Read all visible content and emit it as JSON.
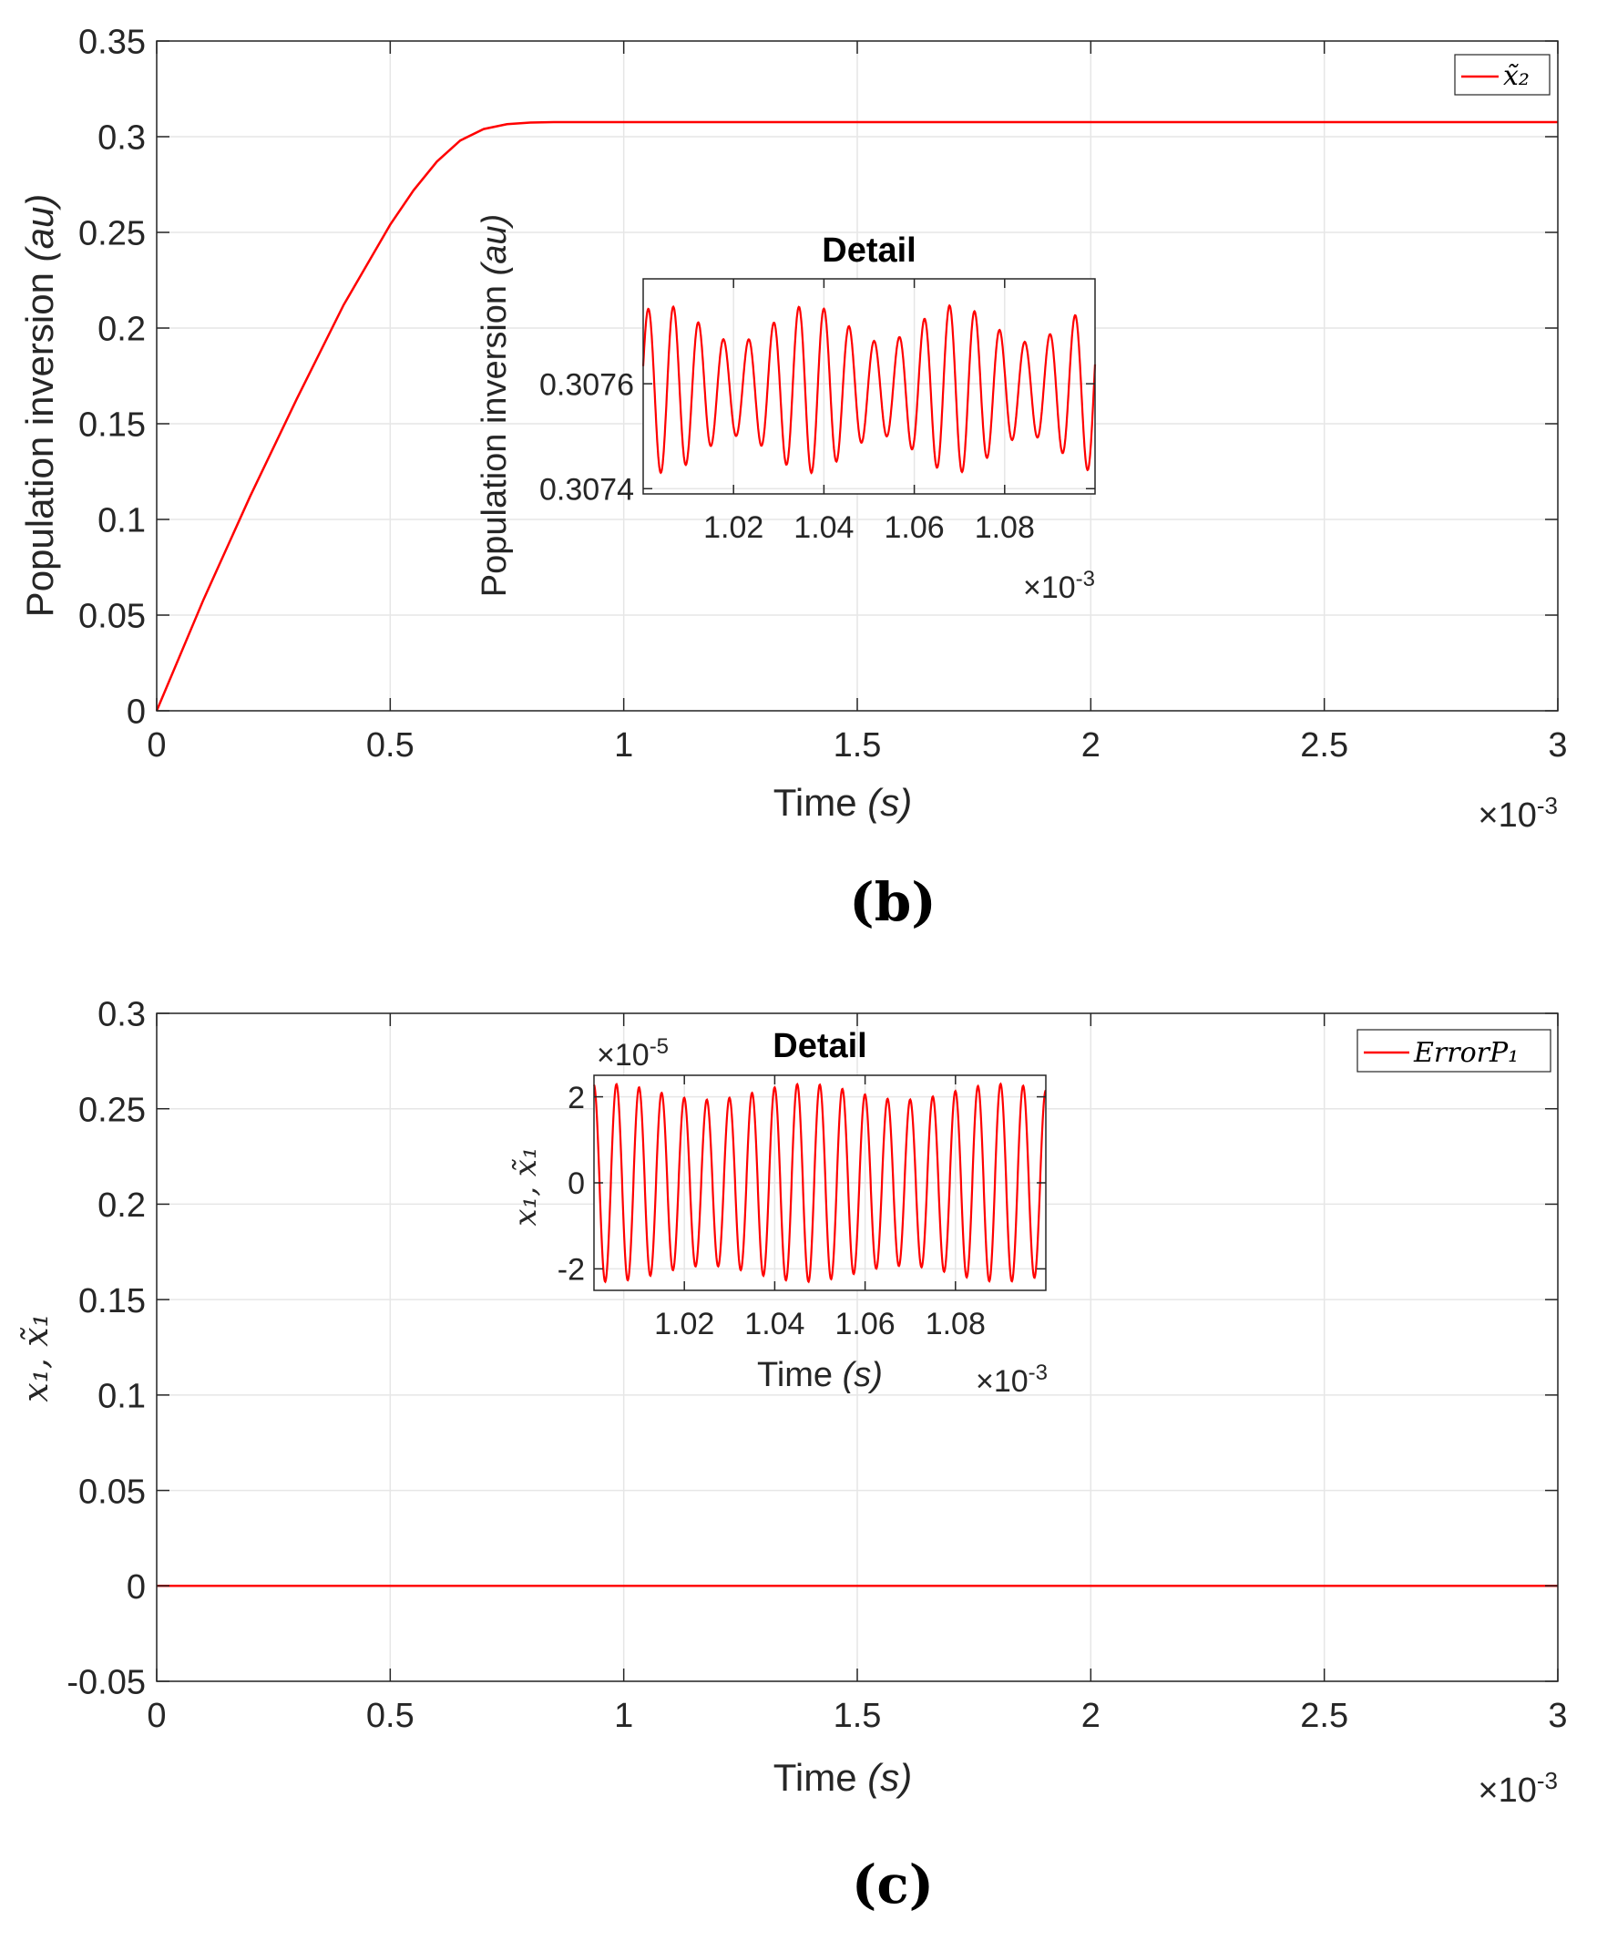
{
  "chart_data": [
    {
      "id": "b",
      "type": "line",
      "panel_label": "(b)",
      "title": "",
      "xlabel": "Time",
      "xlabel_unit": "(s)",
      "ylabel": "Population inversion",
      "ylabel_unit": "(au)",
      "xlim": [
        0,
        3
      ],
      "ylim": [
        0,
        0.35
      ],
      "x_exponent": "×10-3",
      "x_ticks": [
        0,
        0.5,
        1,
        1.5,
        2,
        2.5,
        3
      ],
      "x_tick_labels": [
        "0",
        "0.5",
        "1",
        "1.5",
        "2",
        "2.5",
        "3"
      ],
      "y_ticks": [
        0,
        0.05,
        0.1,
        0.15,
        0.2,
        0.25,
        0.3,
        0.35
      ],
      "y_tick_labels": [
        "0",
        "0.05",
        "0.1",
        "0.15",
        "0.2",
        "0.25",
        "0.3",
        "0.35"
      ],
      "grid": true,
      "legend": {
        "position": "top-right",
        "entries": [
          "x̃₂"
        ]
      },
      "series": [
        {
          "name": "x̃₂",
          "color": "#ff0000",
          "x": [
            0,
            0.1,
            0.2,
            0.3,
            0.4,
            0.5,
            0.55,
            0.6,
            0.65,
            0.7,
            0.75,
            0.8,
            0.85,
            0.9,
            1.0,
            1.5,
            2.0,
            2.5,
            3.0
          ],
          "y": [
            0,
            0.058,
            0.112,
            0.163,
            0.212,
            0.254,
            0.272,
            0.287,
            0.298,
            0.304,
            0.3065,
            0.3074,
            0.3076,
            0.3076,
            0.3076,
            0.3076,
            0.3076,
            0.3076,
            0.3076
          ]
        }
      ],
      "inset": {
        "title": "Detail",
        "ylabel": "Population inversion",
        "ylabel_unit": "(au)",
        "xlim": [
          1.0,
          1.1
        ],
        "ylim": [
          0.30739,
          0.3078
        ],
        "x_exponent": "×10-3",
        "x_ticks": [
          1.02,
          1.04,
          1.06,
          1.08
        ],
        "x_tick_labels": [
          "1.02",
          "1.04",
          "1.06",
          "1.08"
        ],
        "y_ticks": [
          0.3074,
          0.3076
        ],
        "y_tick_labels": [
          "0.3074",
          "0.3076"
        ],
        "oscillation": {
          "mean": 0.30759,
          "amplitude": 0.00016,
          "cycles": 18
        }
      }
    },
    {
      "id": "c",
      "type": "line",
      "panel_label": "(c)",
      "title": "",
      "xlabel": "Time",
      "xlabel_unit": "(s)",
      "ylabel": "x₁, x̃₁",
      "xlim": [
        0,
        3
      ],
      "ylim": [
        -0.05,
        0.3
      ],
      "x_exponent": "×10-3",
      "x_ticks": [
        0,
        0.5,
        1,
        1.5,
        2,
        2.5,
        3
      ],
      "x_tick_labels": [
        "0",
        "0.5",
        "1",
        "1.5",
        "2",
        "2.5",
        "3"
      ],
      "y_ticks": [
        -0.05,
        0,
        0.05,
        0.1,
        0.15,
        0.2,
        0.25,
        0.3
      ],
      "y_tick_labels": [
        "-0.05",
        "0",
        "0.05",
        "0.1",
        "0.15",
        "0.2",
        "0.25",
        "0.3"
      ],
      "grid": true,
      "legend": {
        "position": "top-right",
        "entries": [
          "ErrorP₁"
        ]
      },
      "series": [
        {
          "name": "ErrorP₁",
          "color": "#ff0000",
          "x": [
            0,
            3
          ],
          "y": [
            0,
            0
          ]
        }
      ],
      "inset": {
        "title": "Detail",
        "xlabel": "Time",
        "xlabel_unit": "(s)",
        "ylabel": "x₁, x̃₁",
        "xlim": [
          1.0,
          1.1
        ],
        "ylim": [
          -2.5,
          2.5
        ],
        "y_exponent": "×10-5",
        "x_exponent": "×10-3",
        "x_ticks": [
          1.02,
          1.04,
          1.06,
          1.08
        ],
        "x_tick_labels": [
          "1.02",
          "1.04",
          "1.06",
          "1.08"
        ],
        "y_ticks": [
          -2,
          0,
          2
        ],
        "y_tick_labels": [
          "-2",
          "0",
          "2"
        ],
        "oscillation": {
          "mean": 0,
          "amplitude": 2.3,
          "cycles": 20
        }
      }
    }
  ],
  "exponent": {
    "base": "×10",
    "x_power": "-3",
    "y_power": "-5"
  }
}
